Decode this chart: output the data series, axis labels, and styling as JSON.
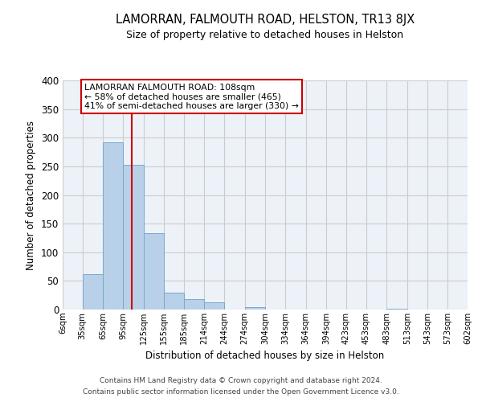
{
  "title": "LAMORRAN, FALMOUTH ROAD, HELSTON, TR13 8JX",
  "subtitle": "Size of property relative to detached houses in Helston",
  "xlabel": "Distribution of detached houses by size in Helston",
  "ylabel": "Number of detached properties",
  "bin_edges": [
    6,
    35,
    65,
    95,
    125,
    155,
    185,
    214,
    244,
    274,
    304,
    334,
    364,
    394,
    423,
    453,
    483,
    513,
    543,
    573,
    602
  ],
  "bin_labels": [
    "6sqm",
    "35sqm",
    "65sqm",
    "95sqm",
    "125sqm",
    "155sqm",
    "185sqm",
    "214sqm",
    "244sqm",
    "274sqm",
    "304sqm",
    "334sqm",
    "364sqm",
    "394sqm",
    "423sqm",
    "453sqm",
    "483sqm",
    "513sqm",
    "543sqm",
    "573sqm",
    "602sqm"
  ],
  "counts": [
    0,
    62,
    292,
    253,
    134,
    30,
    18,
    12,
    0,
    4,
    0,
    0,
    0,
    0,
    0,
    0,
    2,
    0,
    0,
    0
  ],
  "bar_color": "#b8d0e8",
  "bar_edge_color": "#7aa8cc",
  "property_line_x": 108,
  "property_line_color": "#cc0000",
  "annotation_text": "LAMORRAN FALMOUTH ROAD: 108sqm\n← 58% of detached houses are smaller (465)\n41% of semi-detached houses are larger (330) →",
  "annotation_box_edge_color": "#cc0000",
  "ylim": [
    0,
    400
  ],
  "yticks": [
    0,
    50,
    100,
    150,
    200,
    250,
    300,
    350,
    400
  ],
  "footer1": "Contains HM Land Registry data © Crown copyright and database right 2024.",
  "footer2": "Contains public sector information licensed under the Open Government Licence v3.0.",
  "grid_color": "#cccccc",
  "background_color": "#edf2f8"
}
